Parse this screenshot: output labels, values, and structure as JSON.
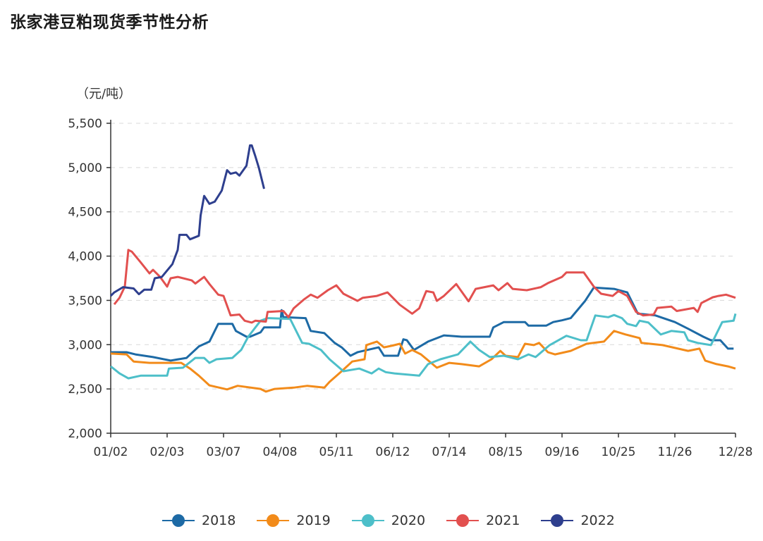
{
  "title": "张家港豆粕现货季节性分析",
  "chart_data": {
    "type": "line",
    "title": "张家港豆粕现货季节性分析",
    "ylabel": "（元/吨）",
    "xlabel": "",
    "ylim": [
      2000,
      5500
    ],
    "yticks": [
      "2,000",
      "2,500",
      "3,000",
      "3,500",
      "4,000",
      "4,500",
      "5,000",
      "5,500"
    ],
    "ytick_values": [
      2000,
      2500,
      3000,
      3500,
      4000,
      4500,
      5000,
      5500
    ],
    "xticks": [
      "01/02",
      "02/03",
      "03/07",
      "04/08",
      "05/11",
      "06/12",
      "07/14",
      "08/15",
      "09/16",
      "10/25",
      "11/26",
      "12/28"
    ],
    "grid": "horizontal dashed",
    "legend": "bottom",
    "series": [
      {
        "name": "2018",
        "color": "#1d6aa5",
        "points": [
          [
            "01/02",
            2915
          ],
          [
            "01/11",
            2915
          ],
          [
            "01/16",
            2890
          ],
          [
            "01/26",
            2860
          ],
          [
            "02/05",
            2820
          ],
          [
            "02/14",
            2850
          ],
          [
            "02/21",
            2980
          ],
          [
            "02/27",
            3035
          ],
          [
            "03/04",
            3235
          ],
          [
            "03/12",
            3235
          ],
          [
            "03/14",
            3155
          ],
          [
            "03/20",
            3090
          ],
          [
            "03/22",
            3090
          ],
          [
            "03/28",
            3140
          ],
          [
            "03/30",
            3195
          ],
          [
            "04/08",
            3195
          ],
          [
            "04/09",
            3390
          ],
          [
            "04/10",
            3310
          ],
          [
            "04/23",
            3300
          ],
          [
            "04/26",
            3155
          ],
          [
            "05/04",
            3130
          ],
          [
            "05/10",
            3020
          ],
          [
            "05/14",
            2970
          ],
          [
            "05/19",
            2875
          ],
          [
            "05/23",
            2915
          ],
          [
            "06/04",
            2970
          ],
          [
            "06/07",
            2875
          ],
          [
            "06/15",
            2875
          ],
          [
            "06/18",
            3060
          ],
          [
            "06/20",
            3050
          ],
          [
            "06/24",
            2940
          ],
          [
            "07/02",
            3035
          ],
          [
            "07/11",
            3105
          ],
          [
            "07/21",
            3090
          ],
          [
            "08/06",
            3090
          ],
          [
            "08/08",
            3195
          ],
          [
            "08/14",
            3255
          ],
          [
            "08/26",
            3255
          ],
          [
            "08/28",
            3215
          ],
          [
            "09/07",
            3215
          ],
          [
            "09/11",
            3255
          ],
          [
            "09/16",
            3275
          ],
          [
            "09/22",
            3300
          ],
          [
            "10/02",
            3495
          ],
          [
            "10/08",
            3645
          ],
          [
            "10/22",
            3630
          ],
          [
            "10/30",
            3590
          ],
          [
            "11/05",
            3350
          ],
          [
            "11/15",
            3330
          ],
          [
            "11/26",
            3255
          ],
          [
            "12/03",
            3180
          ],
          [
            "12/11",
            3090
          ],
          [
            "12/15",
            3050
          ],
          [
            "12/20",
            3050
          ],
          [
            "12/24",
            2955
          ],
          [
            "12/27",
            2955
          ]
        ]
      },
      {
        "name": "2019",
        "color": "#f28b1a",
        "points": [
          [
            "01/02",
            2900
          ],
          [
            "01/11",
            2890
          ],
          [
            "01/15",
            2810
          ],
          [
            "01/24",
            2795
          ],
          [
            "02/11",
            2795
          ],
          [
            "02/16",
            2730
          ],
          [
            "02/21",
            2650
          ],
          [
            "02/27",
            2540
          ],
          [
            "03/09",
            2495
          ],
          [
            "03/15",
            2535
          ],
          [
            "03/28",
            2500
          ],
          [
            "03/31",
            2470
          ],
          [
            "04/05",
            2500
          ],
          [
            "04/16",
            2515
          ],
          [
            "04/24",
            2535
          ],
          [
            "05/04",
            2515
          ],
          [
            "05/07",
            2580
          ],
          [
            "05/14",
            2700
          ],
          [
            "05/20",
            2810
          ],
          [
            "05/27",
            2835
          ],
          [
            "05/28",
            2995
          ],
          [
            "06/03",
            3035
          ],
          [
            "06/07",
            2970
          ],
          [
            "06/12",
            2990
          ],
          [
            "06/16",
            3010
          ],
          [
            "06/19",
            2900
          ],
          [
            "06/23",
            2940
          ],
          [
            "06/28",
            2890
          ],
          [
            "07/07",
            2740
          ],
          [
            "07/14",
            2795
          ],
          [
            "07/21",
            2780
          ],
          [
            "07/31",
            2755
          ],
          [
            "08/07",
            2835
          ],
          [
            "08/12",
            2930
          ],
          [
            "08/15",
            2875
          ],
          [
            "08/22",
            2860
          ],
          [
            "08/26",
            3010
          ],
          [
            "08/31",
            2995
          ],
          [
            "09/03",
            3020
          ],
          [
            "09/08",
            2915
          ],
          [
            "09/12",
            2890
          ],
          [
            "09/22",
            2930
          ],
          [
            "10/03",
            3010
          ],
          [
            "10/15",
            3035
          ],
          [
            "10/22",
            3155
          ],
          [
            "10/29",
            3115
          ],
          [
            "11/06",
            3075
          ],
          [
            "11/07",
            3020
          ],
          [
            "11/19",
            2995
          ],
          [
            "12/03",
            2930
          ],
          [
            "12/09",
            2955
          ],
          [
            "12/12",
            2820
          ],
          [
            "12/18",
            2780
          ],
          [
            "12/24",
            2755
          ],
          [
            "12/28",
            2730
          ]
        ]
      },
      {
        "name": "2020",
        "color": "#4dbfc9",
        "points": [
          [
            "01/02",
            2755
          ],
          [
            "01/07",
            2675
          ],
          [
            "01/12",
            2620
          ],
          [
            "01/19",
            2650
          ],
          [
            "02/03",
            2650
          ],
          [
            "02/04",
            2730
          ],
          [
            "02/12",
            2740
          ],
          [
            "02/19",
            2850
          ],
          [
            "02/24",
            2850
          ],
          [
            "02/27",
            2795
          ],
          [
            "03/03",
            2835
          ],
          [
            "03/12",
            2850
          ],
          [
            "03/17",
            2940
          ],
          [
            "03/21",
            3090
          ],
          [
            "03/28",
            3270
          ],
          [
            "04/01",
            3300
          ],
          [
            "04/14",
            3290
          ],
          [
            "04/21",
            3020
          ],
          [
            "04/25",
            3010
          ],
          [
            "05/02",
            2940
          ],
          [
            "05/07",
            2835
          ],
          [
            "05/15",
            2700
          ],
          [
            "05/24",
            2730
          ],
          [
            "05/31",
            2675
          ],
          [
            "06/04",
            2730
          ],
          [
            "06/08",
            2690
          ],
          [
            "06/13",
            2675
          ],
          [
            "06/27",
            2650
          ],
          [
            "07/02",
            2780
          ],
          [
            "07/09",
            2835
          ],
          [
            "07/19",
            2890
          ],
          [
            "07/26",
            3035
          ],
          [
            "07/31",
            2940
          ],
          [
            "08/06",
            2860
          ],
          [
            "08/14",
            2875
          ],
          [
            "08/22",
            2835
          ],
          [
            "08/28",
            2890
          ],
          [
            "09/01",
            2860
          ],
          [
            "09/09",
            2995
          ],
          [
            "09/19",
            3100
          ],
          [
            "09/29",
            3050
          ],
          [
            "10/03",
            3050
          ],
          [
            "10/09",
            3330
          ],
          [
            "10/18",
            3310
          ],
          [
            "10/22",
            3335
          ],
          [
            "10/27",
            3300
          ],
          [
            "10/30",
            3235
          ],
          [
            "11/04",
            3210
          ],
          [
            "11/06",
            3270
          ],
          [
            "11/11",
            3250
          ],
          [
            "11/18",
            3115
          ],
          [
            "11/24",
            3155
          ],
          [
            "12/01",
            3140
          ],
          [
            "12/03",
            3050
          ],
          [
            "12/08",
            3020
          ],
          [
            "12/15",
            2995
          ],
          [
            "12/21",
            3255
          ],
          [
            "12/27",
            3270
          ],
          [
            "12/28",
            3350
          ]
        ]
      },
      {
        "name": "2021",
        "color": "#e2504f",
        "points": [
          [
            "01/04",
            3455
          ],
          [
            "01/07",
            3530
          ],
          [
            "01/10",
            3655
          ],
          [
            "01/12",
            4070
          ],
          [
            "01/14",
            4050
          ],
          [
            "01/19",
            3930
          ],
          [
            "01/24",
            3805
          ],
          [
            "01/26",
            3845
          ],
          [
            "01/30",
            3765
          ],
          [
            "02/03",
            3655
          ],
          [
            "02/05",
            3750
          ],
          [
            "02/09",
            3765
          ],
          [
            "02/17",
            3725
          ],
          [
            "02/19",
            3690
          ],
          [
            "02/24",
            3765
          ],
          [
            "02/27",
            3685
          ],
          [
            "03/04",
            3565
          ],
          [
            "03/07",
            3550
          ],
          [
            "03/11",
            3330
          ],
          [
            "03/16",
            3340
          ],
          [
            "03/19",
            3270
          ],
          [
            "03/23",
            3250
          ],
          [
            "03/25",
            3270
          ],
          [
            "03/31",
            3260
          ],
          [
            "04/01",
            3370
          ],
          [
            "04/10",
            3380
          ],
          [
            "04/13",
            3310
          ],
          [
            "04/16",
            3410
          ],
          [
            "04/22",
            3510
          ],
          [
            "04/26",
            3565
          ],
          [
            "04/30",
            3530
          ],
          [
            "05/06",
            3615
          ],
          [
            "05/11",
            3670
          ],
          [
            "05/15",
            3575
          ],
          [
            "05/23",
            3495
          ],
          [
            "05/26",
            3530
          ],
          [
            "06/03",
            3550
          ],
          [
            "06/09",
            3590
          ],
          [
            "06/16",
            3450
          ],
          [
            "06/23",
            3350
          ],
          [
            "06/27",
            3410
          ],
          [
            "07/01",
            3605
          ],
          [
            "07/05",
            3590
          ],
          [
            "07/07",
            3495
          ],
          [
            "07/11",
            3550
          ],
          [
            "07/18",
            3685
          ],
          [
            "07/25",
            3490
          ],
          [
            "07/29",
            3630
          ],
          [
            "08/08",
            3670
          ],
          [
            "08/11",
            3615
          ],
          [
            "08/16",
            3695
          ],
          [
            "08/19",
            3630
          ],
          [
            "08/27",
            3615
          ],
          [
            "09/04",
            3650
          ],
          [
            "09/08",
            3695
          ],
          [
            "09/16",
            3765
          ],
          [
            "09/19",
            3815
          ],
          [
            "10/01",
            3815
          ],
          [
            "10/08",
            3655
          ],
          [
            "10/13",
            3575
          ],
          [
            "10/21",
            3550
          ],
          [
            "10/25",
            3605
          ],
          [
            "10/30",
            3550
          ],
          [
            "11/04",
            3370
          ],
          [
            "11/08",
            3330
          ],
          [
            "11/14",
            3340
          ],
          [
            "11/16",
            3415
          ],
          [
            "11/24",
            3430
          ],
          [
            "11/27",
            3380
          ],
          [
            "12/06",
            3415
          ],
          [
            "12/08",
            3370
          ],
          [
            "12/10",
            3470
          ],
          [
            "12/16",
            3535
          ],
          [
            "12/19",
            3550
          ],
          [
            "12/23",
            3565
          ],
          [
            "12/28",
            3530
          ]
        ]
      },
      {
        "name": "2022",
        "color": "#2e3f8e",
        "points": [
          [
            "01/02",
            3550
          ],
          [
            "01/04",
            3590
          ],
          [
            "01/09",
            3650
          ],
          [
            "01/15",
            3635
          ],
          [
            "01/18",
            3570
          ],
          [
            "01/21",
            3620
          ],
          [
            "01/25",
            3620
          ],
          [
            "01/27",
            3750
          ],
          [
            "01/31",
            3765
          ],
          [
            "02/06",
            3910
          ],
          [
            "02/09",
            4070
          ],
          [
            "02/10",
            4240
          ],
          [
            "02/14",
            4240
          ],
          [
            "02/16",
            4190
          ],
          [
            "02/21",
            4230
          ],
          [
            "02/22",
            4460
          ],
          [
            "02/24",
            4680
          ],
          [
            "02/27",
            4590
          ],
          [
            "03/02",
            4615
          ],
          [
            "03/06",
            4740
          ],
          [
            "03/09",
            4970
          ],
          [
            "03/11",
            4930
          ],
          [
            "03/14",
            4945
          ],
          [
            "03/16",
            4910
          ],
          [
            "03/20",
            5020
          ],
          [
            "03/22",
            5250
          ],
          [
            "03/23",
            5250
          ],
          [
            "03/25",
            5130
          ],
          [
            "03/27",
            5000
          ],
          [
            "03/30",
            4760
          ]
        ]
      }
    ]
  }
}
